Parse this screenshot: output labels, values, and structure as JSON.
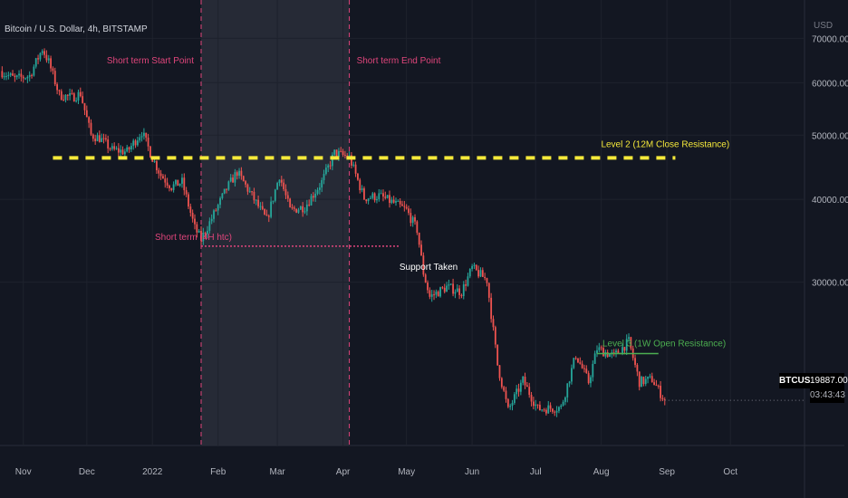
{
  "header": {
    "symbol_title": "Bitcoin / U.S. Dollar, 4h, BITSTAMP",
    "currency": "USD"
  },
  "price_tag": {
    "symbol": "BTCUSD",
    "last_price": "19887.00",
    "countdown": "03:43:43"
  },
  "colors": {
    "background": "#131722",
    "grid": "#1e222d",
    "candle_up": "#26a69a",
    "candle_down": "#ef5350",
    "level2": "#f5e93a",
    "level3": "#4caf50",
    "marker": "#e0457b",
    "shade": "#2a2e39"
  },
  "chart_data": {
    "type": "candlestick",
    "title": "Bitcoin / U.S. Dollar, 4h, BITSTAMP",
    "x_tick_labels": [
      "Nov",
      "Dec",
      "2022",
      "Feb",
      "Mar",
      "Apr",
      "May",
      "Jun",
      "Jul",
      "Aug",
      "Sep",
      "Oct"
    ],
    "x_ticks": [
      "2021-11-01",
      "2021-12-01",
      "2022-01-01",
      "2022-02-01",
      "2022-03-01",
      "2022-04-01",
      "2022-05-01",
      "2022-06-01",
      "2022-07-01",
      "2022-08-01",
      "2022-09-01",
      "2022-10-01"
    ],
    "y_tick_labels": [
      "70000.00",
      "60000.00",
      "50000.00",
      "40000.00",
      "30000.00"
    ],
    "y_ticks": [
      70000,
      60000,
      50000,
      40000,
      30000
    ],
    "y_scale": "log",
    "ylim": [
      17000,
      80000
    ],
    "xlim": [
      "2021-10-21",
      "2022-11-05"
    ],
    "grid": true,
    "price_series": [
      [
        "2021-10-21",
        62500
      ],
      [
        "2021-10-28",
        60800
      ],
      [
        "2021-11-04",
        61500
      ],
      [
        "2021-11-10",
        67500
      ],
      [
        "2021-11-13",
        64500
      ],
      [
        "2021-11-18",
        57500
      ],
      [
        "2021-11-24",
        57000
      ],
      [
        "2021-11-28",
        57800
      ],
      [
        "2021-12-03",
        50000
      ],
      [
        "2021-12-07",
        49500
      ],
      [
        "2021-12-13",
        47500
      ],
      [
        "2021-12-20",
        47200
      ],
      [
        "2021-12-27",
        50600
      ],
      [
        "2022-01-01",
        46200
      ],
      [
        "2022-01-05",
        43500
      ],
      [
        "2022-01-10",
        41800
      ],
      [
        "2022-01-15",
        42500
      ],
      [
        "2022-01-21",
        36200
      ],
      [
        "2022-01-24",
        34800
      ],
      [
        "2022-01-30",
        38000
      ],
      [
        "2022-02-05",
        41500
      ],
      [
        "2022-02-10",
        44000
      ],
      [
        "2022-02-18",
        40000
      ],
      [
        "2022-02-24",
        37200
      ],
      [
        "2022-03-02",
        43500
      ],
      [
        "2022-03-07",
        38500
      ],
      [
        "2022-03-14",
        39000
      ],
      [
        "2022-03-22",
        42500
      ],
      [
        "2022-03-28",
        47000
      ],
      [
        "2022-04-04",
        46300
      ],
      [
        "2022-04-11",
        40200
      ],
      [
        "2022-04-18",
        40500
      ],
      [
        "2022-04-25",
        39500
      ],
      [
        "2022-05-01",
        38500
      ],
      [
        "2022-05-06",
        36000
      ],
      [
        "2022-05-09",
        31000
      ],
      [
        "2022-05-12",
        28500
      ],
      [
        "2022-05-20",
        29500
      ],
      [
        "2022-05-27",
        29000
      ],
      [
        "2022-06-01",
        31500
      ],
      [
        "2022-06-08",
        30200
      ],
      [
        "2022-06-13",
        22500
      ],
      [
        "2022-06-18",
        19200
      ],
      [
        "2022-06-25",
        21300
      ],
      [
        "2022-07-02",
        19300
      ],
      [
        "2022-07-13",
        19400
      ],
      [
        "2022-07-20",
        23300
      ],
      [
        "2022-07-26",
        21200
      ],
      [
        "2022-07-30",
        23800
      ],
      [
        "2022-08-07",
        23200
      ],
      [
        "2022-08-14",
        24400
      ],
      [
        "2022-08-19",
        21200
      ],
      [
        "2022-08-25",
        21400
      ],
      [
        "2022-08-31",
        19887
      ]
    ],
    "shaded_range": {
      "start": "2022-01-24",
      "end": "2022-04-04"
    },
    "vertical_markers": [
      {
        "x": "2022-01-24",
        "label": "Short term  Start Point"
      },
      {
        "x": "2022-04-04",
        "label": "Short term  End Point"
      }
    ],
    "levels": [
      {
        "label": "Level 2 (12M Close Resistance)",
        "y": 46200,
        "x_start": "2021-11-15",
        "x_end": "2022-09-05",
        "style": "dashed"
      },
      {
        "label": "Level 3 (1W Open Resistance)",
        "y": 23400,
        "x_start": "2022-07-30",
        "x_end": "2022-08-28",
        "style": "solid"
      },
      {
        "label": "Short term (4H htc)",
        "y": 34000,
        "x_start": "2022-01-24",
        "x_end": "2022-04-28",
        "style": "dotted"
      }
    ],
    "annotations": [
      {
        "text": "Support Taken",
        "x": "2022-05-14",
        "y": 31000
      }
    ]
  }
}
